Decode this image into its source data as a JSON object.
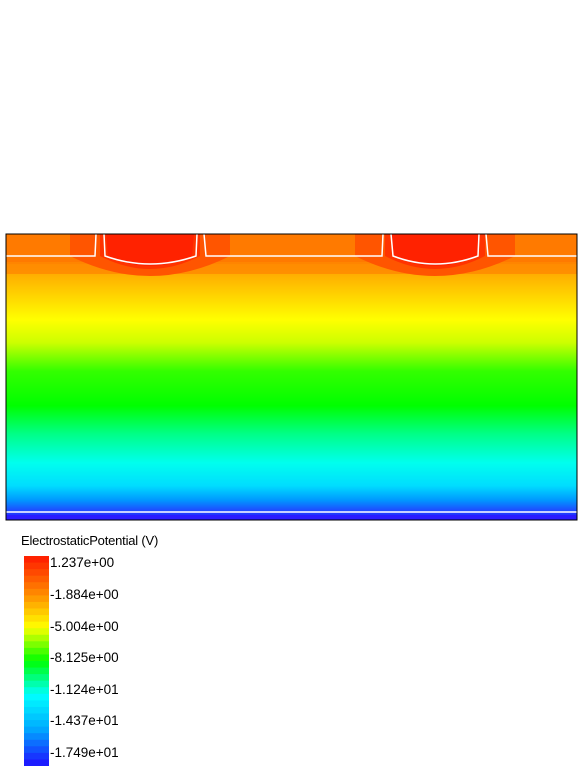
{
  "field": {
    "name": "ElectrostaticPotential (V)",
    "min": -17.49,
    "max": 1.237
  },
  "legend": {
    "title": "ElectrostaticPotential (V)",
    "ticks": [
      "1.237e+00",
      "-1.884e+00",
      "-5.004e+00",
      "-8.125e+00",
      "-1.124e+01",
      "-1.437e+01",
      "-1.749e+01"
    ]
  },
  "colors": {
    "scale": [
      "#1c1cff",
      "#00aaff",
      "#00ffff",
      "#00ff00",
      "#ffff00",
      "#ff8800",
      "#ff2200"
    ],
    "contour": "#ffffff",
    "border": "#000000"
  }
}
